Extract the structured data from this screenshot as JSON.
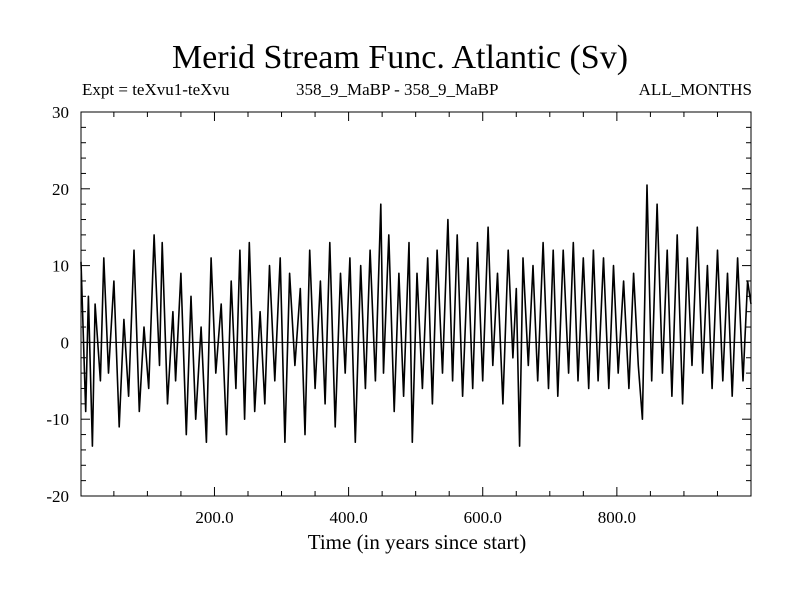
{
  "chart_data": {
    "type": "line",
    "title": "Merid Stream Func. Atlantic (Sv)",
    "subtitle_left": "Expt = teXvu1-teXvu",
    "subtitle_center": "358_9_MaBP - 358_9_MaBP",
    "subtitle_right": "ALL_MONTHS",
    "xlabel": "Time (in years since start)",
    "ylabel": "",
    "xlim": [
      1,
      1000
    ],
    "ylim": [
      -20,
      30
    ],
    "x_ticks": [
      200,
      400,
      600,
      800
    ],
    "x_tick_labels": [
      "200.0",
      "400.0",
      "600.0",
      "800.0"
    ],
    "y_ticks": [
      -20,
      -10,
      0,
      10,
      20,
      30
    ],
    "y_tick_labels": [
      "-20",
      "-10",
      "0",
      "10",
      "20",
      "30"
    ],
    "zero_line": true,
    "series": [
      {
        "name": "Merid Stream Func. Atlantic",
        "x": [
          1,
          8,
          12,
          18,
          22,
          30,
          35,
          42,
          50,
          58,
          65,
          72,
          80,
          88,
          95,
          102,
          110,
          118,
          122,
          130,
          138,
          142,
          150,
          158,
          165,
          172,
          180,
          188,
          195,
          202,
          210,
          218,
          225,
          232,
          238,
          245,
          252,
          260,
          268,
          275,
          282,
          290,
          298,
          305,
          312,
          320,
          328,
          335,
          342,
          350,
          358,
          365,
          372,
          380,
          388,
          395,
          402,
          410,
          418,
          425,
          432,
          440,
          448,
          452,
          460,
          468,
          475,
          482,
          490,
          495,
          502,
          510,
          518,
          525,
          532,
          540,
          548,
          555,
          562,
          570,
          578,
          585,
          592,
          600,
          608,
          615,
          622,
          630,
          638,
          645,
          650,
          655,
          660,
          668,
          675,
          682,
          690,
          698,
          705,
          712,
          720,
          728,
          735,
          742,
          750,
          758,
          765,
          772,
          780,
          788,
          795,
          802,
          810,
          818,
          825,
          832,
          838,
          845,
          852,
          860,
          868,
          875,
          882,
          890,
          898,
          905,
          912,
          920,
          928,
          935,
          942,
          950,
          958,
          965,
          972,
          980,
          988,
          995,
          1000
        ],
        "y": [
          10.5,
          -9,
          6,
          -13.5,
          5,
          -5,
          11,
          -4,
          8,
          -11,
          3,
          -7,
          12,
          -9,
          2,
          -6,
          14,
          -3,
          13,
          -8,
          4,
          -5,
          9,
          -12,
          6,
          -10,
          2,
          -13,
          11,
          -4,
          5,
          -12,
          8,
          -6,
          12,
          -10,
          13,
          -9,
          4,
          -8,
          10,
          -5,
          11,
          -13,
          9,
          -3,
          7,
          -12,
          12,
          -6,
          8,
          -8,
          13,
          -11,
          9,
          -4,
          11,
          -13,
          10,
          -6,
          12,
          -5,
          18,
          -4,
          14,
          -9,
          9,
          -7,
          13,
          -13,
          9,
          -6,
          11,
          -8,
          12,
          -4,
          16,
          -5,
          14,
          -7,
          11,
          -6,
          13,
          -5,
          15,
          -3,
          9,
          -8,
          12,
          -2,
          7,
          -13.5,
          11,
          -3,
          10,
          -5,
          13,
          -6,
          12,
          -7,
          12,
          -4,
          13,
          -5,
          11,
          -6,
          12,
          -5,
          11,
          -6,
          10,
          -4,
          8,
          -6,
          9,
          -3,
          -10,
          20.5,
          -5,
          18,
          -4,
          12,
          -7,
          14,
          -8,
          11,
          -3,
          15,
          -4,
          10,
          -6,
          12,
          -5,
          9,
          -7,
          11,
          -5,
          8,
          5
        ]
      }
    ]
  }
}
